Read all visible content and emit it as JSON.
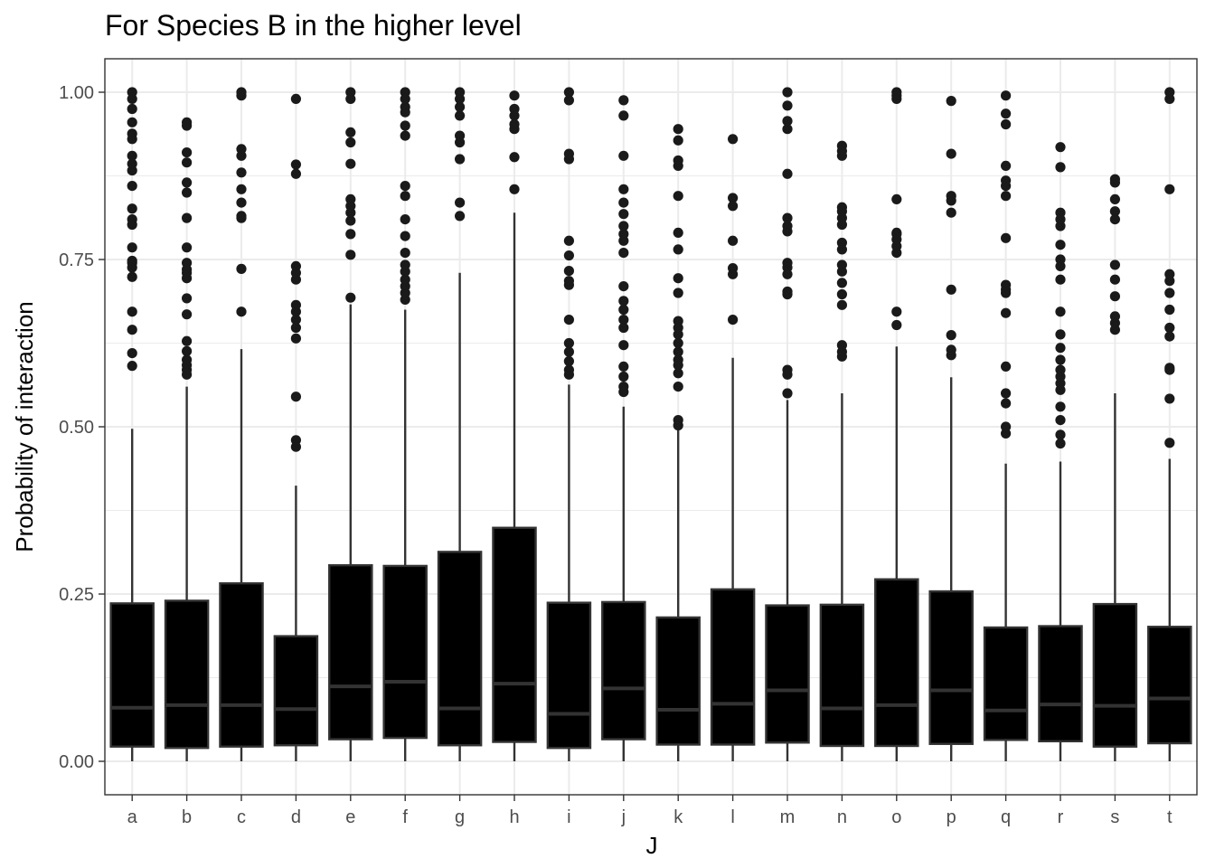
{
  "chart_data": {
    "type": "boxplot",
    "title": "For Species B in the higher level",
    "xlabel": "J",
    "ylabel": "Probability of interaction",
    "ylim": [
      -0.05,
      1.05
    ],
    "yticks": [
      "0.00",
      "0.25",
      "0.50",
      "0.75",
      "1.00"
    ],
    "grid": true,
    "legend": "none",
    "colors": {
      "box_fill": "#000000",
      "box_outline": "#333333",
      "median": "#333333",
      "outlier": "#1a1a1a",
      "grid": "#ebebeb",
      "panel_border": "#333333"
    },
    "categories": [
      "a",
      "b",
      "c",
      "d",
      "e",
      "f",
      "g",
      "h",
      "i",
      "j",
      "k",
      "l",
      "m",
      "n",
      "o",
      "p",
      "q",
      "r",
      "s",
      "t"
    ],
    "boxes": [
      {
        "category": "a",
        "whisker_low": 0.0,
        "q1": 0.022,
        "median": 0.08,
        "q3": 0.236,
        "whisker_high": 0.497,
        "outliers": [
          0.591,
          0.61,
          0.645,
          0.672,
          0.724,
          0.738,
          0.745,
          0.748,
          0.768,
          0.802,
          0.81,
          0.826,
          0.86,
          0.883,
          0.893,
          0.905,
          0.93,
          0.938,
          0.955,
          0.975,
          0.99,
          1.0
        ]
      },
      {
        "category": "b",
        "whisker_low": 0.0,
        "q1": 0.02,
        "median": 0.084,
        "q3": 0.24,
        "whisker_high": 0.56,
        "outliers": [
          0.578,
          0.585,
          0.592,
          0.6,
          0.613,
          0.628,
          0.668,
          0.692,
          0.722,
          0.73,
          0.735,
          0.745,
          0.768,
          0.812,
          0.85,
          0.865,
          0.895,
          0.91,
          0.95,
          0.955
        ]
      },
      {
        "category": "c",
        "whisker_low": 0.0,
        "q1": 0.022,
        "median": 0.084,
        "q3": 0.266,
        "whisker_high": 0.616,
        "outliers": [
          0.672,
          0.736,
          0.812,
          0.815,
          0.835,
          0.855,
          0.88,
          0.905,
          0.915,
          0.995,
          1.0
        ]
      },
      {
        "category": "d",
        "whisker_low": 0.0,
        "q1": 0.024,
        "median": 0.078,
        "q3": 0.187,
        "whisker_high": 0.412,
        "outliers": [
          0.47,
          0.48,
          0.545,
          0.632,
          0.648,
          0.66,
          0.672,
          0.682,
          0.72,
          0.73,
          0.74,
          0.878,
          0.892,
          0.99
        ]
      },
      {
        "category": "e",
        "whisker_low": 0.0,
        "q1": 0.033,
        "median": 0.112,
        "q3": 0.293,
        "whisker_high": 0.683,
        "outliers": [
          0.693,
          0.757,
          0.788,
          0.808,
          0.82,
          0.83,
          0.84,
          0.893,
          0.925,
          0.94,
          0.99,
          1.0
        ]
      },
      {
        "category": "f",
        "whisker_low": 0.0,
        "q1": 0.035,
        "median": 0.119,
        "q3": 0.292,
        "whisker_high": 0.675,
        "outliers": [
          0.69,
          0.7,
          0.71,
          0.72,
          0.732,
          0.742,
          0.76,
          0.785,
          0.81,
          0.845,
          0.86,
          0.935,
          0.95,
          0.97,
          0.978,
          0.99,
          1.0
        ]
      },
      {
        "category": "g",
        "whisker_low": 0.0,
        "q1": 0.024,
        "median": 0.079,
        "q3": 0.313,
        "whisker_high": 0.73,
        "outliers": [
          0.815,
          0.835,
          0.9,
          0.925,
          0.935,
          0.965,
          0.978,
          0.99,
          1.0
        ]
      },
      {
        "category": "h",
        "whisker_low": 0.0,
        "q1": 0.029,
        "median": 0.116,
        "q3": 0.349,
        "whisker_high": 0.82,
        "outliers": [
          0.855,
          0.903,
          0.945,
          0.952,
          0.965,
          0.975,
          0.995
        ]
      },
      {
        "category": "i",
        "whisker_low": 0.0,
        "q1": 0.02,
        "median": 0.071,
        "q3": 0.237,
        "whisker_high": 0.563,
        "outliers": [
          0.578,
          0.585,
          0.598,
          0.612,
          0.625,
          0.66,
          0.712,
          0.718,
          0.733,
          0.756,
          0.778,
          0.9,
          0.908,
          0.988,
          1.0
        ]
      },
      {
        "category": "j",
        "whisker_low": 0.0,
        "q1": 0.033,
        "median": 0.109,
        "q3": 0.238,
        "whisker_high": 0.53,
        "outliers": [
          0.552,
          0.56,
          0.575,
          0.59,
          0.622,
          0.648,
          0.66,
          0.675,
          0.688,
          0.71,
          0.76,
          0.778,
          0.788,
          0.8,
          0.818,
          0.835,
          0.855,
          0.905,
          0.965,
          0.988
        ]
      },
      {
        "category": "k",
        "whisker_low": 0.0,
        "q1": 0.025,
        "median": 0.077,
        "q3": 0.215,
        "whisker_high": 0.497,
        "outliers": [
          0.502,
          0.51,
          0.56,
          0.58,
          0.592,
          0.6,
          0.612,
          0.625,
          0.638,
          0.648,
          0.658,
          0.7,
          0.722,
          0.765,
          0.79,
          0.845,
          0.89,
          0.898,
          0.928,
          0.945
        ]
      },
      {
        "category": "l",
        "whisker_low": 0.0,
        "q1": 0.025,
        "median": 0.086,
        "q3": 0.257,
        "whisker_high": 0.603,
        "outliers": [
          0.66,
          0.728,
          0.737,
          0.778,
          0.83,
          0.842,
          0.93
        ]
      },
      {
        "category": "m",
        "whisker_low": 0.0,
        "q1": 0.028,
        "median": 0.106,
        "q3": 0.233,
        "whisker_high": 0.54,
        "outliers": [
          0.55,
          0.578,
          0.585,
          0.698,
          0.702,
          0.728,
          0.738,
          0.745,
          0.792,
          0.8,
          0.812,
          0.878,
          0.945,
          0.957,
          0.98,
          1.0
        ]
      },
      {
        "category": "n",
        "whisker_low": 0.0,
        "q1": 0.023,
        "median": 0.079,
        "q3": 0.234,
        "whisker_high": 0.55,
        "outliers": [
          0.605,
          0.612,
          0.622,
          0.682,
          0.698,
          0.715,
          0.732,
          0.742,
          0.765,
          0.775,
          0.802,
          0.812,
          0.822,
          0.828,
          0.905,
          0.912,
          0.92
        ]
      },
      {
        "category": "o",
        "whisker_low": 0.0,
        "q1": 0.023,
        "median": 0.084,
        "q3": 0.272,
        "whisker_high": 0.62,
        "outliers": [
          0.652,
          0.672,
          0.76,
          0.77,
          0.78,
          0.788,
          0.79,
          0.84,
          0.99,
          0.995,
          1.0
        ]
      },
      {
        "category": "p",
        "whisker_low": 0.0,
        "q1": 0.026,
        "median": 0.106,
        "q3": 0.254,
        "whisker_high": 0.574,
        "outliers": [
          0.607,
          0.615,
          0.637,
          0.705,
          0.82,
          0.838,
          0.845,
          0.908,
          0.987
        ]
      },
      {
        "category": "q",
        "whisker_low": 0.0,
        "q1": 0.032,
        "median": 0.076,
        "q3": 0.2,
        "whisker_high": 0.445,
        "outliers": [
          0.49,
          0.5,
          0.535,
          0.55,
          0.59,
          0.67,
          0.7,
          0.705,
          0.712,
          0.782,
          0.845,
          0.86,
          0.868,
          0.89,
          0.952,
          0.968,
          0.995
        ]
      },
      {
        "category": "r",
        "whisker_low": 0.0,
        "q1": 0.03,
        "median": 0.085,
        "q3": 0.202,
        "whisker_high": 0.448,
        "outliers": [
          0.475,
          0.488,
          0.51,
          0.53,
          0.555,
          0.565,
          0.575,
          0.585,
          0.6,
          0.618,
          0.638,
          0.672,
          0.72,
          0.74,
          0.75,
          0.772,
          0.8,
          0.81,
          0.82,
          0.888,
          0.918
        ]
      },
      {
        "category": "s",
        "whisker_low": 0.0,
        "q1": 0.022,
        "median": 0.083,
        "q3": 0.235,
        "whisker_high": 0.55,
        "outliers": [
          0.645,
          0.655,
          0.665,
          0.695,
          0.72,
          0.742,
          0.81,
          0.822,
          0.84,
          0.865,
          0.87
        ]
      },
      {
        "category": "t",
        "whisker_low": 0.0,
        "q1": 0.027,
        "median": 0.094,
        "q3": 0.201,
        "whisker_high": 0.452,
        "outliers": [
          0.476,
          0.542,
          0.585,
          0.588,
          0.635,
          0.648,
          0.675,
          0.7,
          0.718,
          0.728,
          0.855,
          0.99,
          1.0
        ]
      }
    ]
  }
}
